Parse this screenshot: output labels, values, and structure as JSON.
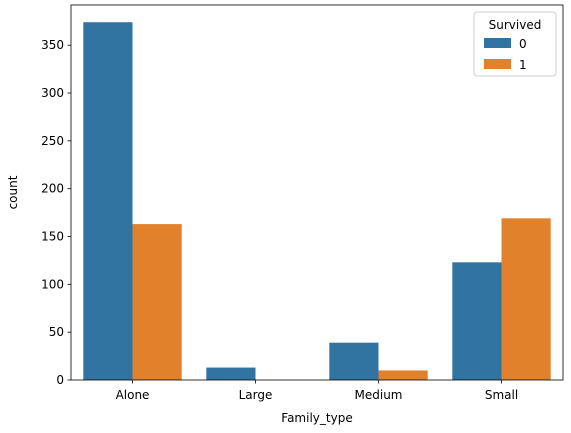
{
  "chart_data": {
    "type": "bar",
    "title": "",
    "xlabel": "Family_type",
    "ylabel": "count",
    "categories": [
      "Alone",
      "Large",
      "Medium",
      "Small"
    ],
    "series": [
      {
        "name": "0",
        "values": [
          374,
          13,
          39,
          123
        ],
        "color": "#3274a1"
      },
      {
        "name": "1",
        "values": [
          163,
          0,
          10,
          169
        ],
        "color": "#e1812c"
      }
    ],
    "ylim": [
      0,
      392
    ],
    "yticks": [
      0,
      50,
      100,
      150,
      200,
      250,
      300,
      350
    ],
    "legend": {
      "title": "Survived",
      "placement": "top-right"
    },
    "grid": false
  }
}
